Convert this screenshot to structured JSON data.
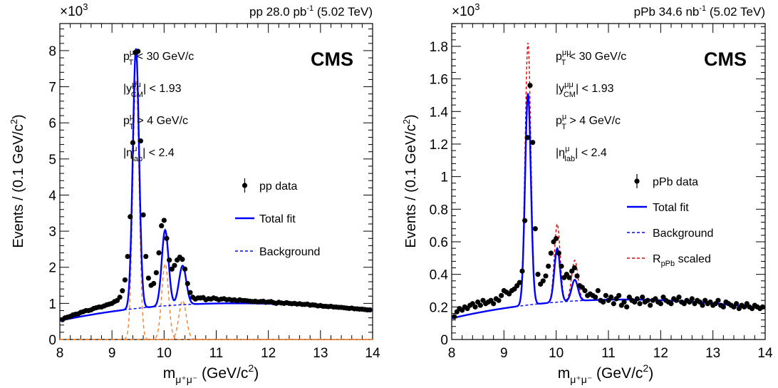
{
  "chart_data": [
    {
      "type": "scatter",
      "header": "pp 28.0 pb",
      "header_sup": "-1",
      "header_tail": " (5.02 TeV)",
      "exp_label": "CMS",
      "multiplier": "×10",
      "multiplier_exp": "3",
      "ylabel": "Events / (0.1 GeV/c",
      "ylabel_sup": "2",
      "ylabel_tail": ")",
      "xlabel_m": "m",
      "xlabel_sub": "μ⁺μ⁻",
      "xlabel_tail": " (GeV/c",
      "xlabel_sup": "2",
      "xlabel_end": ")",
      "xlim": [
        8,
        14
      ],
      "ylim": [
        0,
        8.75
      ],
      "xticks": [
        8,
        9,
        10,
        11,
        12,
        13,
        14
      ],
      "yticks": [
        0,
        1,
        2,
        3,
        4,
        5,
        6,
        7,
        8
      ],
      "ytick_labels": [
        "0",
        "1",
        "2",
        "3",
        "4",
        "5",
        "6",
        "7",
        "8"
      ],
      "cuts": [
        {
          "a": "p",
          "sup": "μμ",
          "sub": "T",
          "b": " < 30 GeV/c"
        },
        {
          "a": "|y",
          "sup": "μμ",
          "sub": "CM",
          "b": "| < 1.93"
        },
        {
          "a": "p",
          "sup": "μ",
          "sub": "T",
          "b": " > 4 GeV/c"
        },
        {
          "a": "|η",
          "sup": "μ",
          "sub": "lab",
          "b": "| < 2.4"
        }
      ],
      "legend": [
        {
          "label": "pp data",
          "style": "data"
        },
        {
          "label": "Total fit",
          "style": "solid-blue"
        },
        {
          "label": "Background",
          "style": "dashed-blue"
        }
      ],
      "colors": {
        "data": "#000000",
        "fit": "#0000ff",
        "background": "#0000ff",
        "components": "#f08030"
      },
      "model": {
        "bg": [
          0.52,
          1.14,
          1.08,
          0.8
        ],
        "peaks": [
          [
            9.46,
            7.2,
            0.06
          ],
          [
            10.02,
            2.1,
            0.065
          ],
          [
            10.355,
            1.08,
            0.07
          ]
        ]
      },
      "series": [
        {
          "name": "pp data",
          "style": "markers",
          "x": [
            8.05,
            8.1,
            8.15,
            8.2,
            8.25,
            8.3,
            8.35,
            8.4,
            8.45,
            8.5,
            8.55,
            8.6,
            8.65,
            8.7,
            8.75,
            8.8,
            8.85,
            8.9,
            8.95,
            9.0,
            9.05,
            9.1,
            9.15,
            9.2,
            9.25,
            9.3,
            9.35,
            9.4,
            9.45,
            9.5,
            9.55,
            9.6,
            9.65,
            9.7,
            9.75,
            9.8,
            9.85,
            9.9,
            9.95,
            10.0,
            10.05,
            10.1,
            10.15,
            10.2,
            10.25,
            10.3,
            10.35,
            10.4,
            10.45,
            10.5,
            10.55,
            10.6,
            10.65,
            10.7,
            10.75,
            10.8,
            10.85,
            10.9,
            10.95,
            11.0,
            11.05,
            11.1,
            11.15,
            11.2,
            11.25,
            11.3,
            11.35,
            11.4,
            11.45,
            11.5,
            11.55,
            11.6,
            11.65,
            11.7,
            11.75,
            11.8,
            11.85,
            11.9,
            11.95,
            12.0,
            12.05,
            12.1,
            12.15,
            12.2,
            12.25,
            12.3,
            12.35,
            12.4,
            12.45,
            12.5,
            12.55,
            12.6,
            12.65,
            12.7,
            12.75,
            12.8,
            12.85,
            12.9,
            12.95,
            13.0,
            13.05,
            13.1,
            13.15,
            13.2,
            13.25,
            13.3,
            13.35,
            13.4,
            13.45,
            13.5,
            13.55,
            13.6,
            13.65,
            13.7,
            13.75,
            13.8,
            13.85,
            13.9,
            13.95
          ],
          "y": [
            0.55,
            0.6,
            0.62,
            0.64,
            0.68,
            0.7,
            0.71,
            0.75,
            0.77,
            0.8,
            0.8,
            0.82,
            0.86,
            0.88,
            0.9,
            0.9,
            0.93,
            0.96,
            0.98,
            1.0,
            1.05,
            1.08,
            1.17,
            1.35,
            1.65,
            2.3,
            3.4,
            5.45,
            7.95,
            7.98,
            5.5,
            3.45,
            2.3,
            1.7,
            1.5,
            1.55,
            1.85,
            2.4,
            3.15,
            3.3,
            2.8,
            2.2,
            1.95,
            2.05,
            2.2,
            2.28,
            2.22,
            1.95,
            1.55,
            1.3,
            1.17,
            1.12,
            1.15,
            1.15,
            1.16,
            1.1,
            1.13,
            1.12,
            1.15,
            1.13,
            1.1,
            1.12,
            1.13,
            1.1,
            1.11,
            1.09,
            1.1,
            1.07,
            1.1,
            1.08,
            1.08,
            1.07,
            1.06,
            1.05,
            1.06,
            1.04,
            1.05,
            1.06,
            1.03,
            1.04,
            1.05,
            1.02,
            1.0,
            1.03,
            1.01,
            1.0,
            1.02,
            1.0,
            0.99,
            1.0,
            0.98,
            0.99,
            0.97,
            0.97,
            0.98,
            0.95,
            0.96,
            0.95,
            0.93,
            0.94,
            0.92,
            0.92,
            0.91,
            0.92,
            0.9,
            0.9,
            0.89,
            0.89,
            0.88,
            0.87,
            0.86,
            0.87,
            0.85,
            0.85,
            0.84,
            0.84,
            0.83,
            0.82,
            0.82
          ]
        }
      ]
    },
    {
      "type": "scatter",
      "header": "pPb 34.6 nb",
      "header_sup": "-1",
      "header_tail": " (5.02 TeV)",
      "exp_label": "CMS",
      "multiplier": "×10",
      "multiplier_exp": "3",
      "ylabel": "Events / (0.1 GeV/c",
      "ylabel_sup": "2",
      "ylabel_tail": ")",
      "xlabel_m": "m",
      "xlabel_sub": "μ⁺μ⁻",
      "xlabel_tail": " (GeV/c",
      "xlabel_sup": "2",
      "xlabel_end": ")",
      "xlim": [
        8,
        14
      ],
      "ylim": [
        0,
        1.94
      ],
      "xticks": [
        8,
        9,
        10,
        11,
        12,
        13,
        14
      ],
      "yticks": [
        0,
        0.2,
        0.4,
        0.6,
        0.8,
        1.0,
        1.2,
        1.4,
        1.6,
        1.8
      ],
      "ytick_labels": [
        "0",
        "0.2",
        "0.4",
        "0.6",
        "0.8",
        "1",
        "1.2",
        "1.4",
        "1.6",
        "1.8"
      ],
      "cuts": [
        {
          "a": "p",
          "sup": "μμ",
          "sub": "T",
          "b": " < 30 GeV/c"
        },
        {
          "a": "|y",
          "sup": "μμ",
          "sub": "CM",
          "b": "| < 1.93"
        },
        {
          "a": "p",
          "sup": "μ",
          "sub": "T",
          "b": " > 4 GeV/c"
        },
        {
          "a": "|η",
          "sup": "μ",
          "sub": "lab",
          "b": "| < 2.4"
        }
      ],
      "legend": [
        {
          "label": "pPb data",
          "style": "data"
        },
        {
          "label": "Total fit",
          "style": "solid-blue"
        },
        {
          "label": "Background",
          "style": "dashed-blue"
        },
        {
          "label": "R",
          "sub": "pPb",
          "tail": " scaled",
          "style": "dashed-red"
        }
      ],
      "colors": {
        "data": "#000000",
        "fit": "#0000ff",
        "background": "#0000ff",
        "scaled": "#e00000"
      },
      "model": {
        "bg": [
          0.13,
          0.28,
          0.265,
          0.19
        ],
        "peaks": [
          [
            9.46,
            1.3,
            0.055
          ],
          [
            10.02,
            0.33,
            0.055
          ],
          [
            10.355,
            0.13,
            0.06
          ]
        ],
        "scaled_peaks": [
          [
            9.46,
            1.61,
            0.055
          ],
          [
            10.02,
            0.48,
            0.055
          ],
          [
            10.355,
            0.25,
            0.06
          ]
        ]
      },
      "series": [
        {
          "name": "pPb data",
          "style": "markers",
          "x": [
            8.05,
            8.1,
            8.15,
            8.2,
            8.25,
            8.3,
            8.35,
            8.4,
            8.45,
            8.5,
            8.55,
            8.6,
            8.65,
            8.7,
            8.75,
            8.8,
            8.85,
            8.9,
            8.95,
            9.0,
            9.05,
            9.1,
            9.15,
            9.2,
            9.25,
            9.3,
            9.35,
            9.4,
            9.45,
            9.5,
            9.55,
            9.6,
            9.65,
            9.7,
            9.75,
            9.8,
            9.85,
            9.9,
            9.95,
            10.0,
            10.05,
            10.1,
            10.15,
            10.2,
            10.25,
            10.3,
            10.35,
            10.4,
            10.45,
            10.5,
            10.55,
            10.6,
            10.65,
            10.7,
            10.75,
            10.8,
            10.85,
            10.9,
            10.95,
            11.0,
            11.05,
            11.1,
            11.15,
            11.2,
            11.25,
            11.3,
            11.35,
            11.4,
            11.45,
            11.5,
            11.55,
            11.6,
            11.65,
            11.7,
            11.75,
            11.8,
            11.85,
            11.9,
            11.95,
            12.0,
            12.05,
            12.1,
            12.15,
            12.2,
            12.25,
            12.3,
            12.35,
            12.4,
            12.45,
            12.5,
            12.55,
            12.6,
            12.65,
            12.7,
            12.75,
            12.8,
            12.85,
            12.9,
            12.95,
            13.0,
            13.05,
            13.1,
            13.15,
            13.2,
            13.25,
            13.3,
            13.35,
            13.4,
            13.45,
            13.5,
            13.55,
            13.6,
            13.65,
            13.7,
            13.75,
            13.8,
            13.85,
            13.9,
            13.95
          ],
          "y": [
            0.14,
            0.17,
            0.19,
            0.18,
            0.2,
            0.19,
            0.21,
            0.22,
            0.2,
            0.23,
            0.21,
            0.24,
            0.22,
            0.23,
            0.24,
            0.22,
            0.25,
            0.24,
            0.27,
            0.3,
            0.29,
            0.28,
            0.3,
            0.31,
            0.33,
            0.35,
            0.42,
            0.73,
            1.24,
            1.56,
            1.21,
            0.68,
            0.4,
            0.34,
            0.36,
            0.39,
            0.45,
            0.53,
            0.6,
            0.62,
            0.53,
            0.45,
            0.38,
            0.4,
            0.38,
            0.42,
            0.44,
            0.39,
            0.33,
            0.32,
            0.3,
            0.27,
            0.28,
            0.27,
            0.26,
            0.3,
            0.24,
            0.23,
            0.27,
            0.24,
            0.26,
            0.22,
            0.25,
            0.27,
            0.21,
            0.23,
            0.2,
            0.26,
            0.24,
            0.23,
            0.25,
            0.22,
            0.26,
            0.23,
            0.24,
            0.21,
            0.24,
            0.25,
            0.23,
            0.22,
            0.26,
            0.24,
            0.23,
            0.22,
            0.25,
            0.24,
            0.26,
            0.23,
            0.22,
            0.24,
            0.23,
            0.25,
            0.22,
            0.24,
            0.23,
            0.21,
            0.24,
            0.22,
            0.23,
            0.21,
            0.22,
            0.24,
            0.21,
            0.2,
            0.23,
            0.22,
            0.21,
            0.2,
            0.22,
            0.19,
            0.21,
            0.2,
            0.22,
            0.2,
            0.19,
            0.21,
            0.2,
            0.19,
            0.2
          ]
        }
      ]
    }
  ]
}
